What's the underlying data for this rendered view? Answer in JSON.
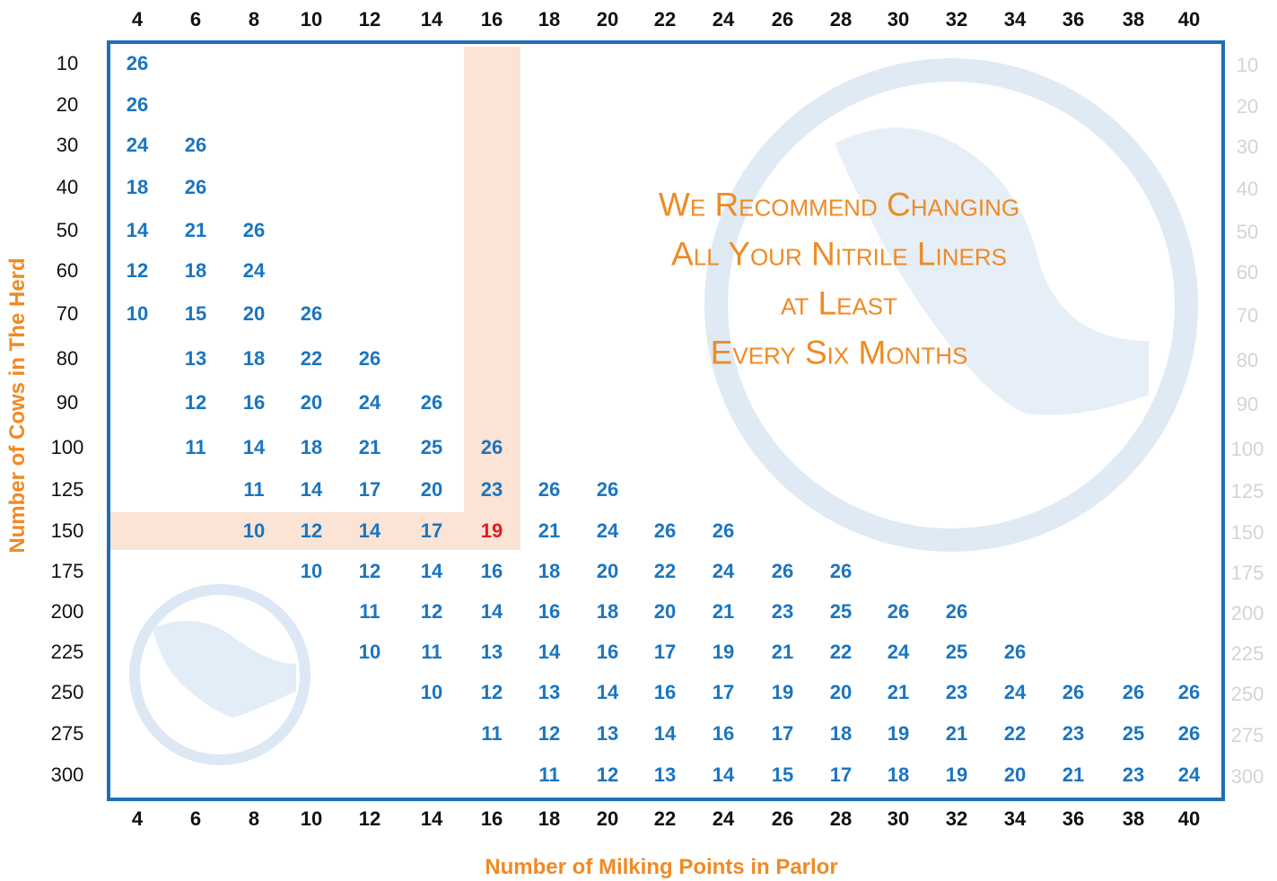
{
  "header": {
    "columns": [
      4,
      6,
      8,
      10,
      12,
      14,
      16,
      18,
      20,
      22,
      24,
      26,
      28,
      30,
      32,
      34,
      36,
      38,
      40
    ]
  },
  "table": {
    "rows": [
      {
        "label": 10,
        "cells": [
          26
        ]
      },
      {
        "label": 20,
        "cells": [
          26
        ]
      },
      {
        "label": 30,
        "cells": [
          24,
          26
        ]
      },
      {
        "label": 40,
        "cells": [
          18,
          26
        ]
      },
      {
        "label": 50,
        "cells": [
          14,
          21,
          26
        ]
      },
      {
        "label": 60,
        "cells": [
          12,
          18,
          24
        ]
      },
      {
        "label": 70,
        "cells": [
          10,
          15,
          20,
          26
        ]
      },
      {
        "label": 80,
        "cells": [
          null,
          13,
          18,
          22,
          26
        ]
      },
      {
        "label": 90,
        "cells": [
          null,
          12,
          16,
          20,
          24,
          26
        ]
      },
      {
        "label": 100,
        "cells": [
          null,
          11,
          14,
          18,
          21,
          25,
          26
        ]
      },
      {
        "label": 125,
        "cells": [
          null,
          null,
          11,
          14,
          17,
          20,
          23,
          26,
          26
        ]
      },
      {
        "label": 150,
        "cells": [
          null,
          null,
          10,
          12,
          14,
          17,
          19,
          21,
          24,
          26,
          26
        ]
      },
      {
        "label": 175,
        "cells": [
          null,
          null,
          null,
          10,
          12,
          14,
          16,
          18,
          20,
          22,
          24,
          26,
          26
        ]
      },
      {
        "label": 200,
        "cells": [
          null,
          null,
          null,
          null,
          11,
          12,
          14,
          16,
          18,
          20,
          21,
          23,
          25,
          26,
          26
        ]
      },
      {
        "label": 225,
        "cells": [
          null,
          null,
          null,
          null,
          10,
          11,
          13,
          14,
          16,
          17,
          19,
          21,
          22,
          24,
          25,
          26
        ]
      },
      {
        "label": 250,
        "cells": [
          null,
          null,
          null,
          null,
          null,
          10,
          12,
          13,
          14,
          16,
          17,
          19,
          20,
          21,
          23,
          24,
          26,
          26,
          26
        ]
      },
      {
        "label": 275,
        "cells": [
          null,
          null,
          null,
          null,
          null,
          null,
          11,
          12,
          13,
          14,
          16,
          17,
          18,
          19,
          21,
          22,
          23,
          25,
          26
        ]
      },
      {
        "label": 300,
        "cells": [
          null,
          null,
          null,
          null,
          null,
          null,
          null,
          11,
          12,
          13,
          14,
          15,
          17,
          18,
          19,
          20,
          21,
          23,
          24
        ]
      }
    ]
  },
  "message": {
    "lines": [
      "We Recommend Changing",
      "All Your Nitrile Liners",
      "at Least",
      "Every Six Months"
    ]
  },
  "axes": {
    "y_title": "Number of Cows in The Herd",
    "x_title": "Number of  Milking Points in Parlor"
  }
}
